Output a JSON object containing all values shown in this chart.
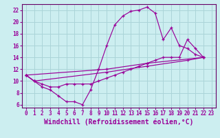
{
  "xlabel": "Windchill (Refroidissement éolien,°C)",
  "bg_color": "#cceef0",
  "grid_color": "#aad4d8",
  "line_color": "#990099",
  "spine_color": "#660066",
  "xlim": [
    -0.5,
    23.5
  ],
  "ylim": [
    5.5,
    23
  ],
  "xticks": [
    0,
    1,
    2,
    3,
    4,
    5,
    6,
    7,
    8,
    9,
    10,
    11,
    12,
    13,
    14,
    15,
    16,
    17,
    18,
    19,
    20,
    21,
    22,
    23
  ],
  "yticks": [
    6,
    8,
    10,
    12,
    14,
    16,
    18,
    20,
    22
  ],
  "line1_x": [
    0,
    1,
    2,
    3,
    4,
    5,
    6,
    7,
    8,
    9,
    10,
    11,
    12,
    13,
    14,
    15,
    16,
    17,
    18,
    19,
    20,
    21,
    22
  ],
  "line1_y": [
    11,
    10,
    9,
    8.5,
    7.5,
    6.5,
    6.5,
    6,
    8.5,
    12,
    16,
    19.5,
    21,
    21.8,
    22,
    22.5,
    21.5,
    17,
    19,
    16,
    15.5,
    14.5,
    14
  ],
  "line2_x": [
    0,
    1,
    2,
    3,
    4,
    5,
    6,
    7,
    8,
    9,
    10,
    11,
    12,
    13,
    14,
    15,
    16,
    17,
    18,
    19,
    20,
    21,
    22
  ],
  "line2_y": [
    11,
    10,
    9.5,
    9,
    9,
    9.5,
    9.5,
    9.5,
    9.5,
    10,
    10.5,
    11,
    11.5,
    12,
    12.5,
    13,
    13.5,
    14,
    14,
    14,
    17,
    15.5,
    14
  ],
  "line3_x": [
    0,
    1,
    10,
    15,
    20,
    22
  ],
  "line3_y": [
    11,
    10,
    11.5,
    12.5,
    13.5,
    14
  ],
  "line4_x": [
    0,
    10,
    15,
    22
  ],
  "line4_y": [
    11,
    12,
    13,
    14
  ],
  "tick_fontsize": 5.5,
  "xlabel_fontsize": 7.0
}
